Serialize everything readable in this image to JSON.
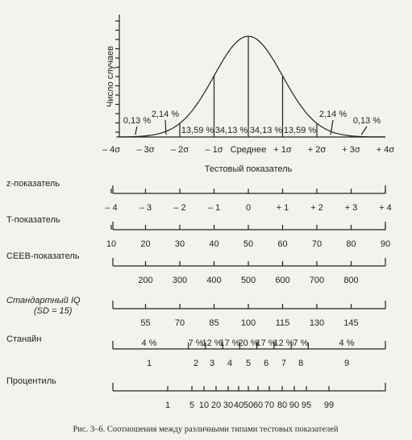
{
  "curve": {
    "y_label": "Число случаев",
    "x_label": "Тестовый показатель",
    "sigma_ticks": [
      "– 4σ",
      "– 3σ",
      "– 2σ",
      "– 1σ",
      "Среднее",
      "+ 1σ",
      "+ 2σ",
      "+ 3σ",
      "+ 4σ"
    ],
    "areas": [
      "0,13 %",
      "2,14 %",
      "13,59 %",
      "34,13 %",
      "34,13 %",
      "13,59 %",
      "2,14 %",
      "0,13 %"
    ]
  },
  "scales": [
    {
      "label": "z-показатель",
      "ticks": [
        "– 4",
        "– 3",
        "– 2",
        "– 1",
        "0",
        "+ 1",
        "+ 2",
        "+ 3",
        "+ 4"
      ]
    },
    {
      "label": "T-показатель",
      "ticks": [
        "10",
        "20",
        "30",
        "40",
        "50",
        "60",
        "70",
        "80",
        "90"
      ]
    },
    {
      "label": "CEEB-показатель",
      "ticks": [
        "200",
        "300",
        "400",
        "500",
        "600",
        "700",
        "800"
      ]
    },
    {
      "label": [
        "Стандартный IQ",
        "(SD = 15)"
      ],
      "ticks": [
        "55",
        "70",
        "85",
        "100",
        "115",
        "130",
        "145"
      ]
    },
    {
      "label": "Станайн",
      "percents": [
        "4 %",
        "7 %",
        "12 %",
        "17 %",
        "20 %",
        "17 %",
        "12 %",
        "7 %",
        "4 %"
      ],
      "ticks": [
        "1",
        "2",
        "3",
        "4",
        "5",
        "6",
        "7",
        "8",
        "9"
      ]
    },
    {
      "label": "Процентиль",
      "ticks": [
        "1",
        "5",
        "10",
        "20",
        "30",
        "40",
        "50",
        "60",
        "70",
        "80",
        "90",
        "95",
        "99"
      ]
    }
  ],
  "caption": "Рис. 3–6. Соотношения между различными типами тестовых показателей"
}
